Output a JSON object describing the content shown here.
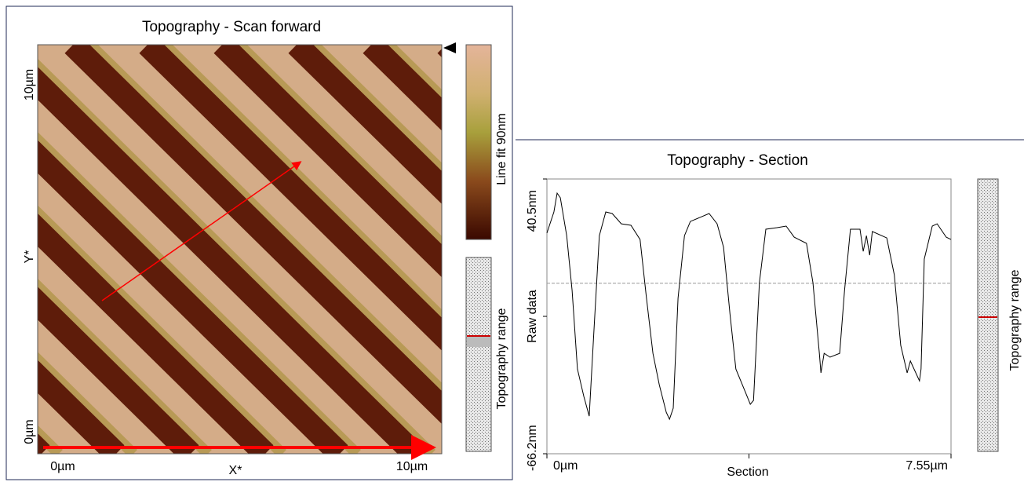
{
  "image_panel": {
    "title": "Topography - Scan forward",
    "x_axis_label": "X*",
    "y_axis_label": "Y*",
    "x_start": "0µm",
    "x_end": "10µm",
    "y_start": "0µm",
    "y_end": "10µm",
    "colorbar_label": "Line fit 90nm",
    "range_label": "Topography range"
  },
  "chart_data": {
    "type": "line",
    "title": "Topography - Section",
    "x_label": "Section",
    "y_label": "Raw data",
    "range_label": "Topography range",
    "xlim": [
      0,
      7.55
    ],
    "xticks": [
      {
        "value": 0,
        "label": "0µm"
      },
      {
        "value": 7.55,
        "label": "7.55µm"
      }
    ],
    "ylim": [
      -66.2,
      40.5
    ],
    "yticks": [
      {
        "value": -66.2,
        "label": "-66.2nm"
      },
      {
        "value": 40.5,
        "label": "40.5nm"
      }
    ],
    "reference_line": 0,
    "x": [
      0,
      0.13,
      0.19,
      0.25,
      0.37,
      0.47,
      0.57,
      0.69,
      0.79,
      0.88,
      0.98,
      1.1,
      1.22,
      1.39,
      1.57,
      1.74,
      1.86,
      1.98,
      2.1,
      2.23,
      2.29,
      2.36,
      2.45,
      2.57,
      2.68,
      2.86,
      3.03,
      3.18,
      3.3,
      3.42,
      3.53,
      3.71,
      3.8,
      3.86,
      3.97,
      4.09,
      4.3,
      4.47,
      4.62,
      4.85,
      4.97,
      5.09,
      5.12,
      5.18,
      5.29,
      5.47,
      5.56,
      5.67,
      5.85,
      5.91,
      5.97,
      6.03,
      6.08,
      6.35,
      6.49,
      6.61,
      6.73,
      6.79,
      6.96,
      6.99,
      7.05,
      7.2,
      7.29,
      7.46,
      7.55
    ],
    "series": [
      {
        "color": "#000000",
        "values": [
          19.5,
          27.7,
          35.0,
          33.2,
          18.5,
          -2.8,
          -33.3,
          -44.0,
          -51.6,
          -18.0,
          18.5,
          27.7,
          27.1,
          23.1,
          22.5,
          17.0,
          -5.8,
          -27.2,
          -39.4,
          -50.1,
          -52.8,
          -48.5,
          -5.8,
          18.5,
          24.0,
          25.6,
          27.1,
          23.1,
          14.0,
          -11.9,
          -33.3,
          -42.4,
          -47.0,
          -45.5,
          0.3,
          21.0,
          21.6,
          22.2,
          17.9,
          15.5,
          0.3,
          -27.2,
          -34.8,
          -27.2,
          -28.7,
          -27.2,
          -2.8,
          21.0,
          21.0,
          12.4,
          18.5,
          10.9,
          20.1,
          17.6,
          3.3,
          -24.1,
          -34.8,
          -30.2,
          -37.9,
          -33.3,
          9.4,
          22.2,
          23.1,
          17.9,
          17.0
        ]
      }
    ]
  }
}
